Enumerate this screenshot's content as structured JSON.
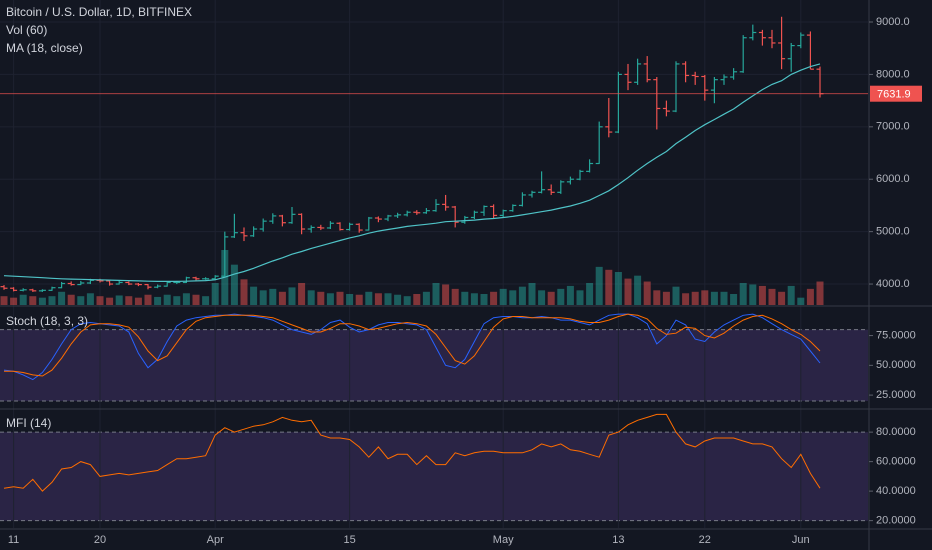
{
  "chart_data": [
    {
      "type": "ohlc",
      "title": "Bitcoin / U.S. Dollar, 1D, BITFINEX",
      "volume_title": "Vol (60)",
      "ma_title": "MA (18, close)",
      "up_color": "#26a69a",
      "down_color": "#ef5350",
      "ma_color": "#4fc3c7",
      "grid": true,
      "ylim": [
        3600,
        9420
      ],
      "yticks": [
        {
          "value": 4000,
          "label": "4000.0"
        },
        {
          "value": 5000,
          "label": "5000.0"
        },
        {
          "value": 6000,
          "label": "6000.0"
        },
        {
          "value": 7000,
          "label": "7000.0"
        },
        {
          "value": 8000,
          "label": "8000.0"
        },
        {
          "value": 9000,
          "label": "9000.0"
        }
      ],
      "last_price_label": "7631.9",
      "ohlc": [
        [
          3950,
          3980,
          3890,
          3920
        ],
        [
          3920,
          3940,
          3860,
          3880
        ],
        [
          3880,
          3920,
          3860,
          3890
        ],
        [
          3890,
          3910,
          3850,
          3870
        ],
        [
          3870,
          3900,
          3850,
          3880
        ],
        [
          3880,
          3950,
          3870,
          3930
        ],
        [
          3930,
          4040,
          3920,
          4010
        ],
        [
          4010,
          4050,
          3970,
          3990
        ],
        [
          3990,
          4060,
          3980,
          4020
        ],
        [
          4020,
          4100,
          4000,
          4070
        ],
        [
          4070,
          4100,
          4030,
          4060
        ],
        [
          4060,
          4080,
          3970,
          4000
        ],
        [
          4000,
          4060,
          3990,
          4030
        ],
        [
          4030,
          4050,
          3980,
          4000
        ],
        [
          4000,
          4020,
          3960,
          3990
        ],
        [
          3990,
          4000,
          3900,
          3940
        ],
        [
          3940,
          3990,
          3920,
          3960
        ],
        [
          3960,
          4050,
          3950,
          4030
        ],
        [
          4030,
          4060,
          4000,
          4030
        ],
        [
          4030,
          4140,
          4020,
          4120
        ],
        [
          4120,
          4140,
          4070,
          4100
        ],
        [
          4100,
          4130,
          4080,
          4100
        ],
        [
          4100,
          4170,
          4080,
          4150
        ],
        [
          4150,
          5000,
          4150,
          4900
        ],
        [
          4900,
          5340,
          4880,
          4980
        ],
        [
          4980,
          5080,
          4820,
          4920
        ],
        [
          4920,
          5100,
          4900,
          5050
        ],
        [
          5050,
          5250,
          5000,
          5200
        ],
        [
          5200,
          5350,
          5150,
          5300
        ],
        [
          5300,
          5320,
          5100,
          5170
        ],
        [
          5170,
          5470,
          5150,
          5330
        ],
        [
          5330,
          5350,
          4950,
          5050
        ],
        [
          5050,
          5120,
          4980,
          5080
        ],
        [
          5080,
          5130,
          5030,
          5070
        ],
        [
          5070,
          5200,
          5050,
          5160
        ],
        [
          5160,
          5180,
          5020,
          5040
        ],
        [
          5040,
          5170,
          5020,
          5140
        ],
        [
          5140,
          5160,
          4980,
          5030
        ],
        [
          5030,
          5280,
          5020,
          5260
        ],
        [
          5260,
          5290,
          5180,
          5240
        ],
        [
          5240,
          5320,
          5200,
          5300
        ],
        [
          5300,
          5360,
          5260,
          5320
        ],
        [
          5320,
          5400,
          5290,
          5370
        ],
        [
          5370,
          5410,
          5320,
          5360
        ],
        [
          5360,
          5450,
          5340,
          5400
        ],
        [
          5400,
          5620,
          5380,
          5520
        ],
        [
          5520,
          5700,
          5400,
          5470
        ],
        [
          5470,
          5490,
          5080,
          5180
        ],
        [
          5180,
          5300,
          5150,
          5270
        ],
        [
          5270,
          5400,
          5240,
          5370
        ],
        [
          5370,
          5500,
          5300,
          5480
        ],
        [
          5480,
          5520,
          5250,
          5310
        ],
        [
          5310,
          5420,
          5280,
          5400
        ],
        [
          5400,
          5520,
          5380,
          5500
        ],
        [
          5500,
          5750,
          5480,
          5700
        ],
        [
          5700,
          5780,
          5650,
          5750
        ],
        [
          5750,
          6150,
          5730,
          5800
        ],
        [
          5800,
          5900,
          5700,
          5750
        ],
        [
          5750,
          5980,
          5720,
          5950
        ],
        [
          5950,
          6050,
          5900,
          6000
        ],
        [
          6000,
          6180,
          5980,
          6150
        ],
        [
          6150,
          6380,
          6130,
          6300
        ],
        [
          6300,
          7100,
          6290,
          7000
        ],
        [
          7000,
          7550,
          6800,
          6900
        ],
        [
          6900,
          8050,
          6880,
          8000
        ],
        [
          8000,
          8200,
          7700,
          7850
        ],
        [
          7850,
          8300,
          7800,
          8200
        ],
        [
          8200,
          8350,
          7850,
          7900
        ],
        [
          7900,
          7950,
          6950,
          7350
        ],
        [
          7350,
          7500,
          7200,
          7300
        ],
        [
          7300,
          8250,
          7280,
          8200
        ],
        [
          8200,
          8250,
          7850,
          7980
        ],
        [
          7980,
          8050,
          7800,
          7960
        ],
        [
          7960,
          7990,
          7500,
          7700
        ],
        [
          7700,
          7950,
          7450,
          7900
        ],
        [
          7900,
          8000,
          7800,
          7950
        ],
        [
          7950,
          8120,
          7900,
          8050
        ],
        [
          8050,
          8750,
          8030,
          8700
        ],
        [
          8700,
          8950,
          8650,
          8800
        ],
        [
          8800,
          8850,
          8550,
          8700
        ],
        [
          8700,
          8850,
          8500,
          8600
        ],
        [
          8600,
          9100,
          8100,
          8300
        ],
        [
          8300,
          8600,
          8050,
          8550
        ],
        [
          8550,
          8800,
          8500,
          8750
        ],
        [
          8750,
          8820,
          8100,
          8100
        ],
        [
          8100,
          8150,
          7560,
          7631.9
        ]
      ],
      "volume": [
        12,
        10,
        14,
        12,
        10,
        12,
        18,
        14,
        12,
        16,
        12,
        10,
        13,
        12,
        10,
        14,
        11,
        14,
        12,
        16,
        14,
        12,
        30,
        75,
        55,
        35,
        25,
        20,
        22,
        18,
        24,
        30,
        20,
        18,
        16,
        18,
        15,
        14,
        18,
        16,
        16,
        14,
        12,
        15,
        18,
        30,
        28,
        22,
        18,
        16,
        15,
        18,
        22,
        20,
        25,
        30,
        20,
        18,
        22,
        26,
        20,
        30,
        52,
        48,
        45,
        36,
        40,
        32,
        20,
        18,
        25,
        16,
        18,
        20,
        18,
        18,
        15,
        30,
        28,
        26,
        22,
        18,
        26,
        10,
        22,
        32
      ],
      "ma": [
        4160,
        4150,
        4140,
        4130,
        4120,
        4110,
        4100,
        4095,
        4090,
        4085,
        4080,
        4075,
        4070,
        4065,
        4060,
        4055,
        4050,
        4050,
        4050,
        4055,
        4060,
        4065,
        4080,
        4130,
        4190,
        4240,
        4300,
        4370,
        4440,
        4500,
        4570,
        4620,
        4680,
        4730,
        4780,
        4830,
        4880,
        4920,
        4970,
        5010,
        5040,
        5070,
        5100,
        5120,
        5140,
        5160,
        5190,
        5200,
        5210,
        5220,
        5240,
        5250,
        5270,
        5290,
        5320,
        5350,
        5380,
        5410,
        5450,
        5490,
        5540,
        5600,
        5690,
        5780,
        5900,
        6030,
        6170,
        6300,
        6420,
        6530,
        6680,
        6800,
        6930,
        7040,
        7140,
        7240,
        7340,
        7470,
        7590,
        7710,
        7810,
        7880,
        8000,
        8080,
        8150,
        8200
      ]
    },
    {
      "type": "line",
      "title": "Stoch (18, 3, 3)",
      "ylim": [
        15,
        99
      ],
      "yticks": [
        {
          "value": 25,
          "label": "25.0000"
        },
        {
          "value": 50,
          "label": "50.0000"
        },
        {
          "value": 75,
          "label": "75.0000"
        }
      ],
      "bands": [
        20,
        80
      ],
      "band_color": "#7e57c2",
      "series": [
        {
          "color": "#2962ff",
          "values": [
            46,
            45,
            42,
            38,
            44,
            55,
            68,
            80,
            85,
            86,
            85,
            84,
            83,
            78,
            60,
            48,
            55,
            70,
            83,
            88,
            90,
            91,
            92,
            92,
            93,
            92,
            91,
            90,
            88,
            84,
            80,
            78,
            76,
            80,
            86,
            88,
            82,
            78,
            80,
            84,
            86,
            86,
            85,
            84,
            80,
            65,
            50,
            48,
            55,
            70,
            85,
            90,
            91,
            91,
            90,
            90,
            91,
            90,
            88,
            88,
            86,
            84,
            88,
            92,
            93,
            93,
            90,
            85,
            68,
            75,
            88,
            84,
            72,
            70,
            78,
            84,
            88,
            92,
            93,
            90,
            85,
            80,
            76,
            72,
            62,
            52
          ]
        },
        {
          "color": "#ff6d00",
          "values": [
            45,
            45,
            44,
            42,
            41,
            46,
            56,
            68,
            78,
            84,
            85,
            85,
            84,
            82,
            74,
            62,
            54,
            58,
            69,
            80,
            87,
            90,
            91,
            92,
            92,
            92,
            92,
            91,
            90,
            87,
            84,
            81,
            78,
            78,
            81,
            85,
            85,
            83,
            80,
            81,
            83,
            85,
            86,
            85,
            83,
            76,
            65,
            54,
            51,
            58,
            70,
            82,
            89,
            91,
            91,
            90,
            90,
            90,
            90,
            89,
            87,
            86,
            86,
            88,
            91,
            93,
            92,
            89,
            81,
            76,
            77,
            82,
            81,
            75,
            73,
            77,
            83,
            88,
            91,
            92,
            89,
            85,
            80,
            76,
            70,
            62
          ]
        }
      ]
    },
    {
      "type": "line",
      "title": "MFI (14)",
      "ylim": [
        15,
        95
      ],
      "yticks": [
        {
          "value": 20,
          "label": "20.0000"
        },
        {
          "value": 40,
          "label": "40.0000"
        },
        {
          "value": 60,
          "label": "60.0000"
        },
        {
          "value": 80,
          "label": "80.0000"
        }
      ],
      "bands": [
        20,
        80
      ],
      "band_color": "#7e57c2",
      "xticks": [
        {
          "value": 1,
          "label": "11"
        },
        {
          "value": 10,
          "label": "20"
        },
        {
          "value": 22,
          "label": "Apr"
        },
        {
          "value": 36,
          "label": "15"
        },
        {
          "value": 52,
          "label": "May"
        },
        {
          "value": 64,
          "label": "13"
        },
        {
          "value": 73,
          "label": "22"
        },
        {
          "value": 83,
          "label": "Jun"
        }
      ],
      "series": [
        {
          "color": "#ff6d00",
          "values": [
            42,
            43,
            42,
            48,
            40,
            46,
            55,
            56,
            60,
            58,
            50,
            51,
            52,
            51,
            52,
            53,
            54,
            58,
            62,
            62,
            63,
            64,
            78,
            83,
            80,
            82,
            84,
            85,
            87,
            90,
            88,
            87,
            88,
            78,
            76,
            76,
            75,
            70,
            63,
            70,
            62,
            65,
            65,
            58,
            64,
            58,
            58,
            66,
            64,
            66,
            67,
            67,
            66,
            66,
            66,
            68,
            72,
            70,
            72,
            68,
            67,
            65,
            63,
            78,
            80,
            85,
            88,
            90,
            92,
            92,
            80,
            72,
            70,
            74,
            76,
            76,
            76,
            74,
            72,
            72,
            70,
            62,
            56,
            65,
            52,
            42
          ]
        }
      ]
    }
  ]
}
